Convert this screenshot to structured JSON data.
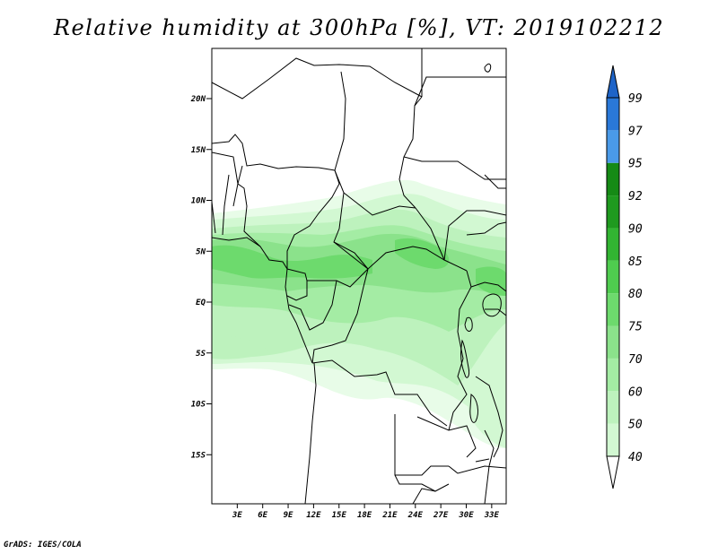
{
  "title": "Relative humidity at 300hPa [%], VT: 2019102212",
  "credit": "GrADS: IGES/COLA",
  "map": {
    "lat_labels": [
      {
        "label": "20N",
        "lat": 20
      },
      {
        "label": "15N",
        "lat": 15
      },
      {
        "label": "10N",
        "lat": 10
      },
      {
        "label": "5N",
        "lat": 5
      },
      {
        "label": "EQ",
        "lat": 0
      },
      {
        "label": "5S",
        "lat": -5
      },
      {
        "label": "10S",
        "lat": -10
      },
      {
        "label": "15S",
        "lat": -15
      }
    ],
    "lon_labels": [
      {
        "label": "3E",
        "lon": 3
      },
      {
        "label": "6E",
        "lon": 6
      },
      {
        "label": "9E",
        "lon": 9
      },
      {
        "label": "12E",
        "lon": 12
      },
      {
        "label": "15E",
        "lon": 15
      },
      {
        "label": "18E",
        "lon": 18
      },
      {
        "label": "21E",
        "lon": 21
      },
      {
        "label": "24E",
        "lon": 24
      },
      {
        "label": "27E",
        "lon": 27
      },
      {
        "label": "30E",
        "lon": 30
      },
      {
        "label": "33E",
        "lon": 33
      }
    ]
  },
  "colorbar": {
    "levels": [
      {
        "label": "40",
        "color": "#e8fce8"
      },
      {
        "label": "50",
        "color": "#d2f8d2"
      },
      {
        "label": "60",
        "color": "#bdf2bd"
      },
      {
        "label": "70",
        "color": "#a4eca4"
      },
      {
        "label": "75",
        "color": "#8be28b"
      },
      {
        "label": "80",
        "color": "#6dda6d"
      },
      {
        "label": "85",
        "color": "#4fcc4f"
      },
      {
        "label": "90",
        "color": "#32b432"
      },
      {
        "label": "92",
        "color": "#1f9a1f"
      },
      {
        "label": "95",
        "color": "#158a15"
      },
      {
        "label": "97",
        "color": "#4a9ae8"
      },
      {
        "label": "99",
        "color": "#2a78d8"
      }
    ],
    "top_color": "#1e64c8",
    "bottom_color": "#ffffff"
  }
}
